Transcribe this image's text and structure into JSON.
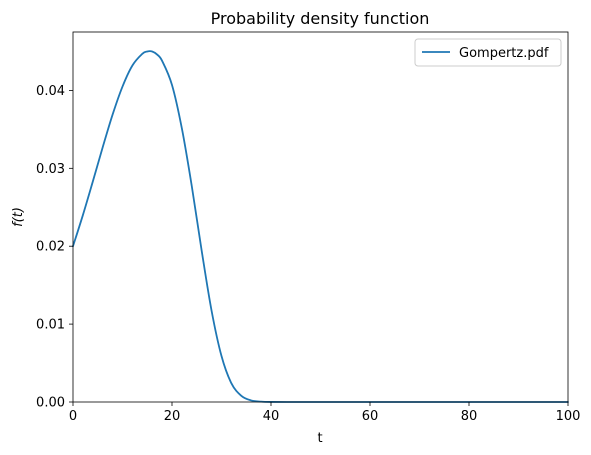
{
  "chart_data": {
    "type": "line",
    "title": "Probability density function",
    "xlabel": "t",
    "ylabel": "f(t)",
    "xlim": [
      0,
      100
    ],
    "ylim": [
      0,
      0.0475
    ],
    "x_ticks": [
      "0",
      "20",
      "40",
      "60",
      "80",
      "100"
    ],
    "y_ticks": [
      "0.00",
      "0.01",
      "0.02",
      "0.03",
      "0.04"
    ],
    "grid": false,
    "legend_position": "top-right",
    "series": [
      {
        "name": "Gompertz.pdf",
        "color": "#1f77b4",
        "x": [
          0,
          2,
          4,
          6,
          8,
          10,
          12,
          14,
          15,
          16,
          17,
          18,
          20,
          22,
          24,
          26,
          28,
          30,
          32,
          34,
          36,
          38,
          40,
          45,
          50,
          60,
          70,
          80,
          90,
          100
        ],
        "y": [
          0.02,
          0.024,
          0.0283,
          0.0327,
          0.0369,
          0.0405,
          0.0432,
          0.0447,
          0.045,
          0.045,
          0.0446,
          0.0438,
          0.0407,
          0.0351,
          0.0277,
          0.0194,
          0.0117,
          0.0059,
          0.0024,
          0.0008,
          0.0002,
          5e-05,
          1e-05,
          0,
          0,
          0,
          0,
          0,
          0,
          0
        ]
      }
    ]
  }
}
